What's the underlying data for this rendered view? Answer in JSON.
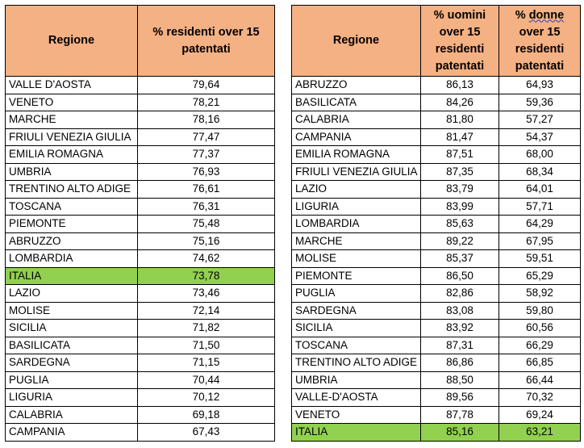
{
  "left_table": {
    "headers": [
      "Regione",
      "% residenti over 15 patentati"
    ],
    "rows": [
      [
        "VALLE D'AOSTA",
        "79,64"
      ],
      [
        "VENETO",
        "78,21"
      ],
      [
        "MARCHE",
        "78,16"
      ],
      [
        "FRIULI VENEZIA GIULIA",
        "77,47"
      ],
      [
        "EMILIA ROMAGNA",
        "77,37"
      ],
      [
        "UMBRIA",
        "76,93"
      ],
      [
        "TRENTINO ALTO ADIGE",
        "76,61"
      ],
      [
        "TOSCANA",
        "76,31"
      ],
      [
        "PIEMONTE",
        "75,48"
      ],
      [
        "ABRUZZO",
        "75,16"
      ],
      [
        "LOMBARDIA",
        "74,62"
      ],
      [
        "ITALIA",
        "73,78"
      ],
      [
        "LAZIO",
        "73,46"
      ],
      [
        "MOLISE",
        "72,14"
      ],
      [
        "SICILIA",
        "71,82"
      ],
      [
        "BASILICATA",
        "71,50"
      ],
      [
        "SARDEGNA",
        "71,15"
      ],
      [
        "PUGLIA",
        "70,44"
      ],
      [
        "LIGURIA",
        "70,12"
      ],
      [
        "CALABRIA",
        "69,18"
      ],
      [
        "CAMPANIA",
        "67,43"
      ]
    ]
  },
  "right_table": {
    "headers": [
      "Regione",
      "% uomini over 15 residenti patentati",
      "% donne over 15 residenti patentati"
    ],
    "header_lines": {
      "uomini": [
        "% uomini",
        "over 15",
        "residenti",
        "patentati"
      ],
      "donne_first": "% ",
      "donne_word": "donne",
      "donne_rest": [
        "over 15",
        "residenti",
        "patentati"
      ]
    },
    "rows": [
      [
        "ABRUZZO",
        "86,13",
        "64,93"
      ],
      [
        "BASILICATA",
        "84,26",
        "59,36"
      ],
      [
        "CALABRIA",
        "81,80",
        "57,27"
      ],
      [
        "CAMPANIA",
        "81,47",
        "54,37"
      ],
      [
        "EMILIA ROMAGNA",
        "87,51",
        "68,00"
      ],
      [
        "FRIULI VENEZIA GIULIA",
        "87,35",
        "68,34"
      ],
      [
        "LAZIO",
        "83,79",
        "64,01"
      ],
      [
        "LIGURIA",
        "83,99",
        "57,71"
      ],
      [
        "LOMBARDIA",
        "85,63",
        "64,29"
      ],
      [
        "MARCHE",
        "89,22",
        "67,95"
      ],
      [
        "MOLISE",
        "85,37",
        "59,51"
      ],
      [
        "PIEMONTE",
        "86,50",
        "65,29"
      ],
      [
        "PUGLIA",
        "82,86",
        "58,92"
      ],
      [
        "SARDEGNA",
        "83,08",
        "59,80"
      ],
      [
        "SICILIA",
        "83,92",
        "60,56"
      ],
      [
        "TOSCANA",
        "87,31",
        "66,29"
      ],
      [
        "TRENTINO ALTO ADIGE",
        "86,86",
        "66,85"
      ],
      [
        "UMBRIA",
        "88,50",
        "66,44"
      ],
      [
        "VALLE-D'AOSTA",
        "89,56",
        "70,32"
      ],
      [
        "VENETO",
        "87,78",
        "69,24"
      ],
      [
        "ITALIA",
        "85,16",
        "63,21"
      ]
    ]
  },
  "colors": {
    "header_fill": "#f4b183",
    "highlight_fill": "#92d050",
    "border": "#000000"
  },
  "highlight_label": "ITALIA"
}
